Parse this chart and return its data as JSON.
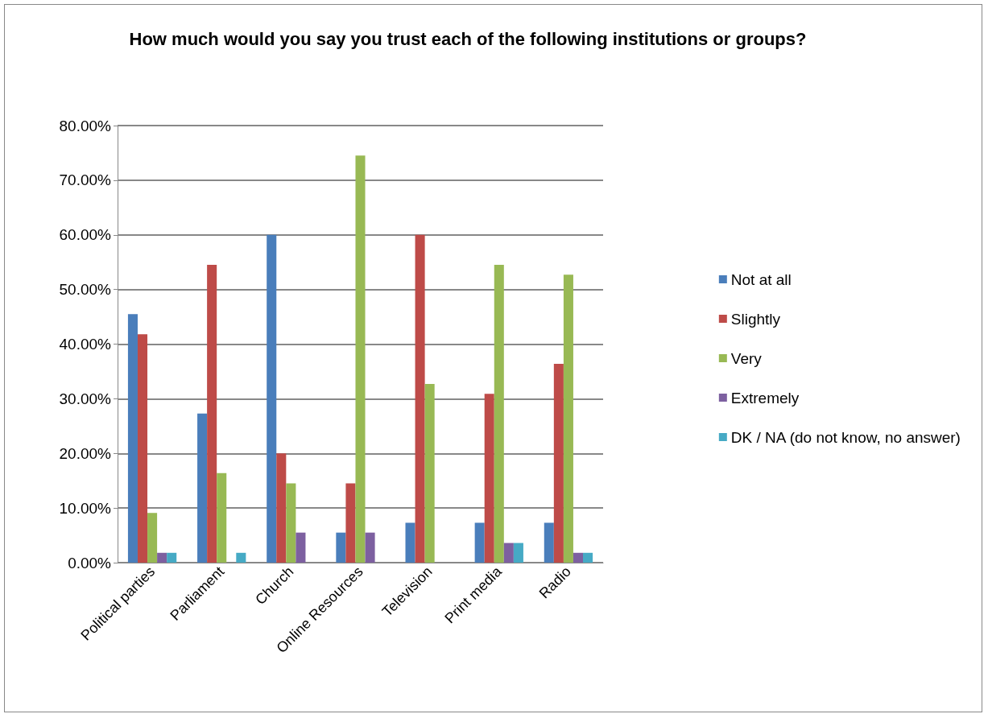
{
  "chart_data": {
    "type": "bar",
    "title": "How much would you say you trust each of the following institutions or groups?",
    "categories": [
      "Political parties",
      "Parliament",
      "Church",
      "Online Resources",
      "Television",
      "Print media",
      "Radio"
    ],
    "series": [
      {
        "name": "Not at all",
        "color": "#4a7ebb",
        "values": [
          45.5,
          27.3,
          60.0,
          5.5,
          7.3,
          7.3,
          7.3
        ]
      },
      {
        "name": "Slightly",
        "color": "#be4b48",
        "values": [
          41.8,
          54.5,
          20.0,
          14.5,
          60.0,
          30.9,
          36.4
        ]
      },
      {
        "name": "Very",
        "color": "#98b954",
        "values": [
          9.1,
          16.4,
          14.5,
          74.5,
          32.7,
          54.5,
          52.7
        ]
      },
      {
        "name": "Extremely",
        "color": "#7d60a0",
        "values": [
          1.8,
          0,
          5.5,
          5.5,
          0,
          3.6,
          1.8
        ]
      },
      {
        "name": "DK / NA (do not know, no answer)",
        "color": "#46aac5",
        "values": [
          1.8,
          1.8,
          0,
          0,
          0,
          3.6,
          1.8
        ]
      }
    ],
    "ylim": [
      0,
      80
    ],
    "yticks": [
      {
        "value": 0,
        "label": "0.00%"
      },
      {
        "value": 10,
        "label": "10.00%"
      },
      {
        "value": 20,
        "label": "20.00%"
      },
      {
        "value": 30,
        "label": "30.00%"
      },
      {
        "value": 40,
        "label": "40.00%"
      },
      {
        "value": 50,
        "label": "50.00%"
      },
      {
        "value": 60,
        "label": "60.00%"
      },
      {
        "value": 70,
        "label": "70.00%"
      },
      {
        "value": 80,
        "label": "80.00%"
      }
    ],
    "grid": "y",
    "legend": "right"
  }
}
